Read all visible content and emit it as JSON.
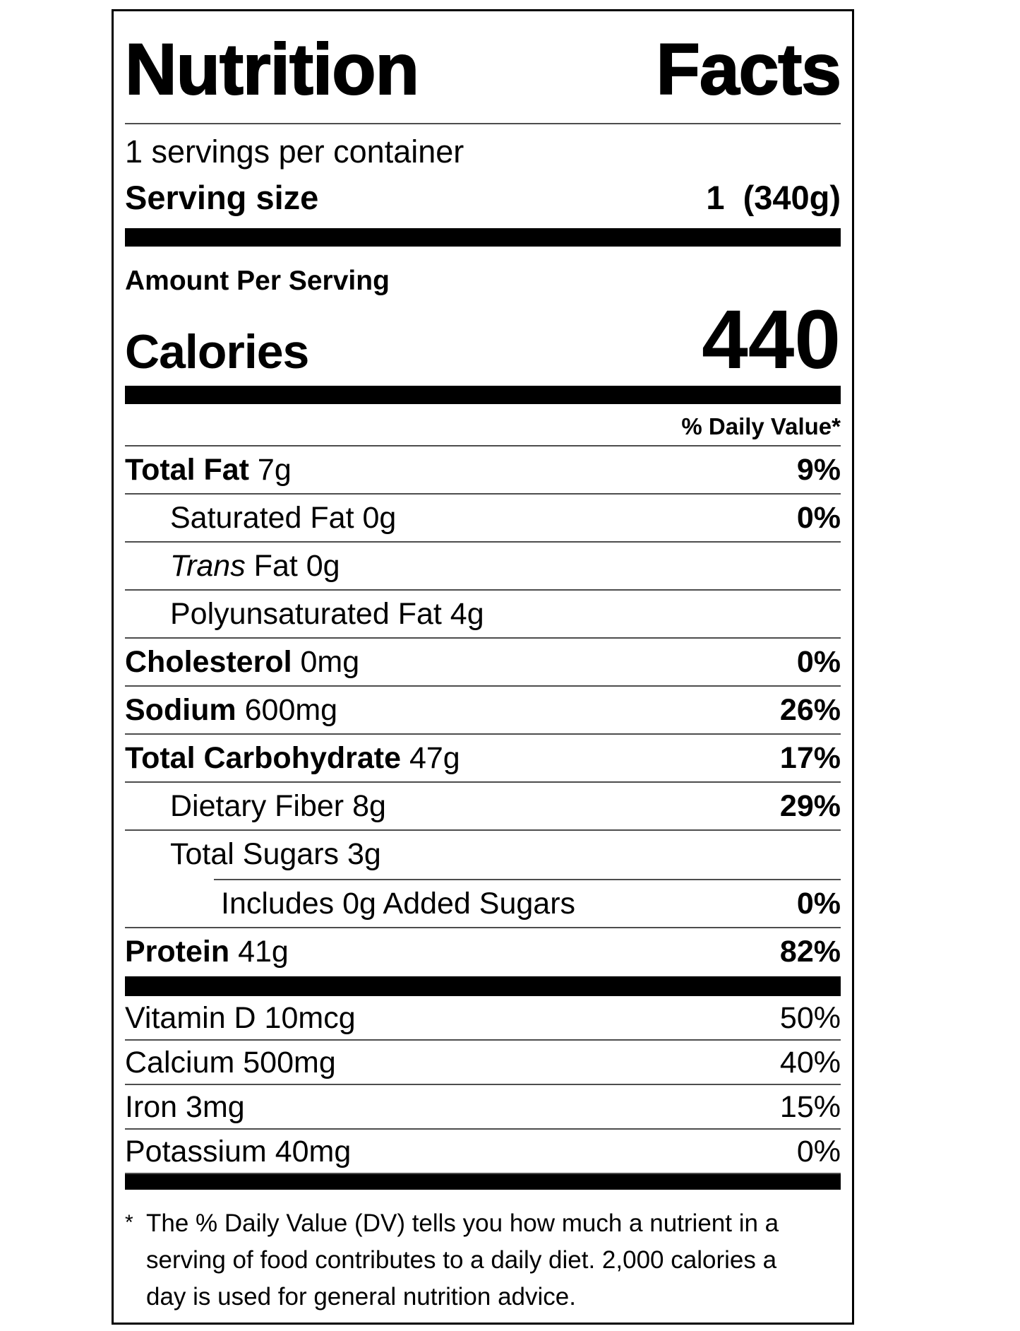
{
  "label": {
    "title": "Nutrition Facts",
    "servings_per_container": "1 servings per container",
    "serving_size_label": "Serving size",
    "serving_size_value": "1  (340g)",
    "amount_per_serving": "Amount Per Serving",
    "calories_label": "Calories",
    "calories_value": "440",
    "daily_value_header": "% Daily Value*",
    "nutrients": [
      {
        "name": "Total Fat",
        "amount": "7g",
        "dv": "9%",
        "indent": 0,
        "name_bold": true
      },
      {
        "name": "Saturated Fat",
        "amount": "0g",
        "dv": "0%",
        "indent": 1
      },
      {
        "name": "Trans",
        "amount": "Fat 0g",
        "dv": "",
        "indent": 1,
        "name_italic": true
      },
      {
        "name": "Polyunsaturated Fat",
        "amount": "4g",
        "dv": "",
        "indent": 1
      },
      {
        "name": "Cholesterol",
        "amount": "0mg",
        "dv": "0%",
        "indent": 0,
        "name_bold": true
      },
      {
        "name": "Sodium",
        "amount": "600mg",
        "dv": "26%",
        "indent": 0,
        "name_bold": true
      },
      {
        "name": "Total Carbohydrate",
        "amount": "47g",
        "dv": "17%",
        "indent": 0,
        "name_bold": true
      },
      {
        "name": "Dietary Fiber",
        "amount": "8g",
        "dv": "29%",
        "indent": 1
      },
      {
        "name": "Total Sugars",
        "amount": "3g",
        "dv": "",
        "indent": 1,
        "divider": "none"
      },
      {
        "name": "Includes 0g Added Sugars",
        "amount": "",
        "dv": "0%",
        "indent": 2,
        "top_divider": true
      },
      {
        "name": "Protein",
        "amount": "41g",
        "dv": "82%",
        "indent": 0,
        "name_bold": true,
        "divider": "none"
      }
    ],
    "vitamins": [
      {
        "name": "Vitamin D",
        "amount": "10mcg",
        "dv": "50%"
      },
      {
        "name": "Calcium",
        "amount": "500mg",
        "dv": "40%"
      },
      {
        "name": "Iron",
        "amount": "3mg",
        "dv": "15%"
      },
      {
        "name": "Potassium",
        "amount": "40mg",
        "dv": "0%"
      }
    ],
    "footnote_asterisk": "*",
    "footnote_lines": [
      "The % Daily Value (DV) tells you how much a nutrient in a",
      "serving of food contributes to a daily diet. 2,000 calories a",
      "day is used for general nutrition advice."
    ],
    "colors": {
      "text": "#000000",
      "background": "#ffffff",
      "thick_bar": "#000000",
      "hairline": "#4d4d4d"
    }
  }
}
